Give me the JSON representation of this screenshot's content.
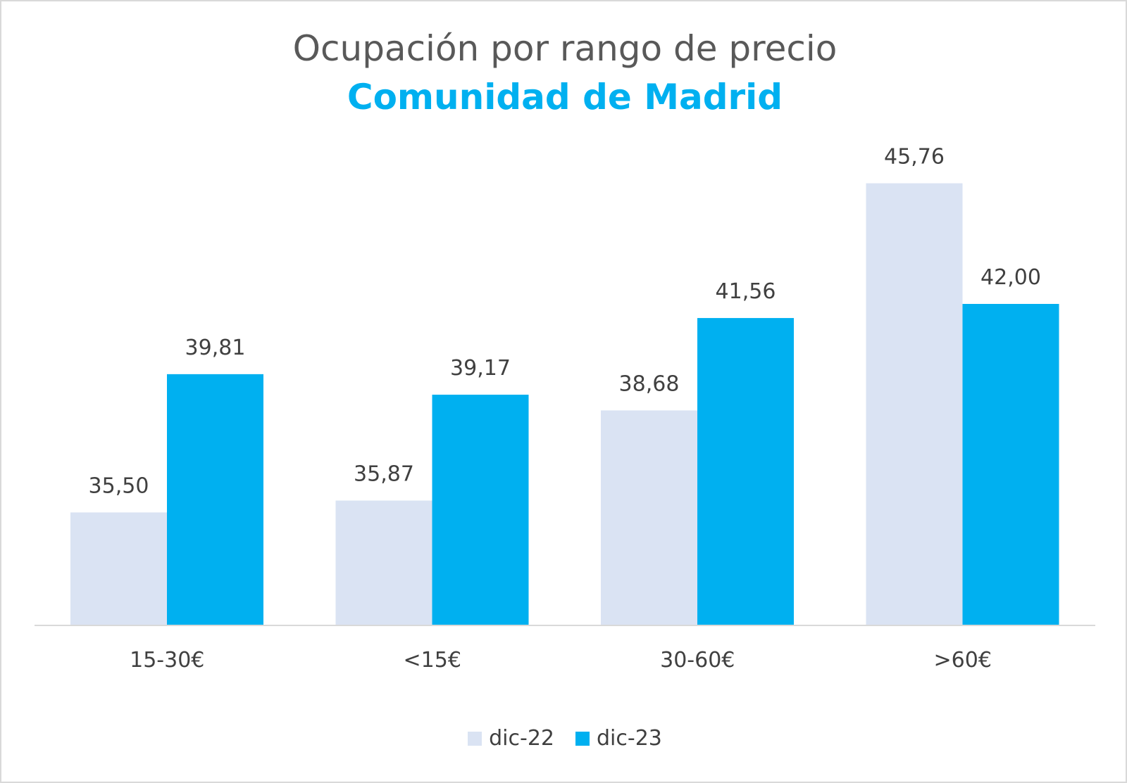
{
  "chart_data": {
    "type": "bar",
    "title": "Ocupación por rango de precio",
    "subtitle": "Comunidad de Madrid",
    "categories": [
      "15-30€",
      "<15€",
      "30-60€",
      ">60€"
    ],
    "series": [
      {
        "name": "dic-22",
        "color": "#dae3f3",
        "values": [
          35.5,
          35.87,
          38.68,
          45.76
        ],
        "labels": [
          "35,50",
          "35,87",
          "38,68",
          "45,76"
        ]
      },
      {
        "name": "dic-23",
        "color": "#00b0f0",
        "values": [
          39.81,
          39.17,
          41.56,
          42.0
        ],
        "labels": [
          "39,81",
          "39,17",
          "41,56",
          "42,00"
        ]
      }
    ],
    "ylim": [
      32,
      48
    ],
    "grid": false,
    "legend_position": "bottom",
    "title_color": "#595959",
    "subtitle_color": "#00b0f0"
  }
}
